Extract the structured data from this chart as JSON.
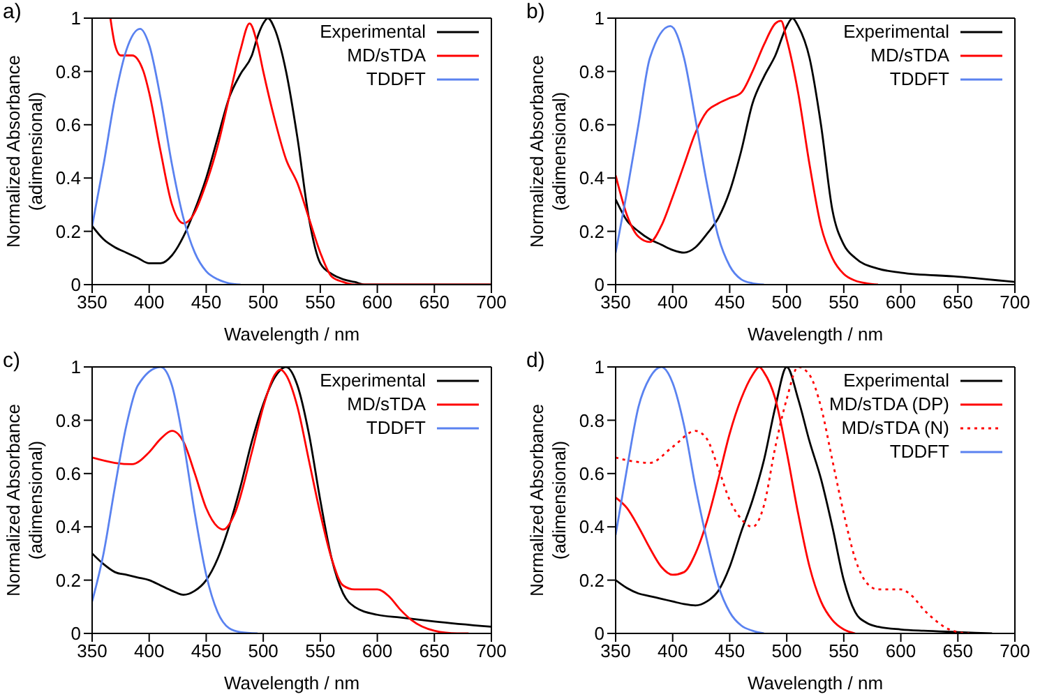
{
  "chart_data": [
    {
      "type": "line",
      "title": "a)",
      "xlabel": "Wavelength / nm",
      "ylabel": "Normalized Absorbance\n(adimensional)",
      "xlim": [
        350,
        700
      ],
      "xticks": [
        350,
        400,
        450,
        500,
        550,
        600,
        650,
        700
      ],
      "ylim": [
        0,
        1
      ],
      "yticks": [
        0,
        0.2,
        0.4,
        0.6,
        0.8,
        1
      ],
      "legend": "top right",
      "series": [
        {
          "name": "Experimental",
          "color": "#000000",
          "x": [
            350,
            360,
            370,
            380,
            390,
            400,
            410,
            420,
            430,
            440,
            450,
            460,
            470,
            480,
            490,
            495,
            500,
            504,
            510,
            520,
            530,
            540,
            550,
            560,
            570,
            580,
            590,
            600,
            650,
            700
          ],
          "values": [
            0.22,
            0.17,
            0.14,
            0.12,
            0.1,
            0.08,
            0.08,
            0.11,
            0.18,
            0.28,
            0.4,
            0.55,
            0.7,
            0.79,
            0.86,
            0.93,
            0.98,
            1.0,
            0.96,
            0.8,
            0.55,
            0.25,
            0.08,
            0.04,
            0.02,
            0.01,
            0,
            0,
            0,
            0
          ]
        },
        {
          "name": "MD/sTDA",
          "color": "#ff0000",
          "x": [
            366,
            370,
            375,
            385,
            395,
            400,
            410,
            420,
            430,
            435,
            450,
            460,
            470,
            480,
            488,
            495,
            500,
            510,
            520,
            530,
            540,
            550,
            560,
            570,
            580,
            700
          ],
          "values": [
            1.0,
            0.9,
            0.86,
            0.86,
            0.8,
            0.72,
            0.5,
            0.3,
            0.23,
            0.24,
            0.38,
            0.52,
            0.7,
            0.88,
            0.98,
            0.9,
            0.8,
            0.62,
            0.47,
            0.38,
            0.25,
            0.12,
            0.03,
            0.01,
            0,
            0
          ]
        },
        {
          "name": "TDDFT",
          "color": "#5a82f0",
          "x": [
            350,
            360,
            370,
            380,
            392,
            400,
            410,
            420,
            430,
            440,
            450,
            460,
            470,
            480
          ],
          "values": [
            0.22,
            0.45,
            0.7,
            0.88,
            0.96,
            0.9,
            0.7,
            0.45,
            0.25,
            0.12,
            0.05,
            0.02,
            0.005,
            0
          ]
        }
      ]
    },
    {
      "type": "line",
      "title": "b)",
      "xlabel": "Wavelength / nm",
      "ylabel": "Normalized Absorbance\n(adimensional)",
      "xlim": [
        350,
        700
      ],
      "xticks": [
        350,
        400,
        450,
        500,
        550,
        600,
        650,
        700
      ],
      "ylim": [
        0,
        1
      ],
      "yticks": [
        0,
        0.2,
        0.4,
        0.6,
        0.8,
        1
      ],
      "legend": "top right",
      "series": [
        {
          "name": "Experimental",
          "color": "#000000",
          "x": [
            350,
            360,
            370,
            380,
            390,
            400,
            410,
            420,
            430,
            440,
            450,
            460,
            470,
            480,
            490,
            500,
            505,
            510,
            520,
            530,
            540,
            550,
            560,
            580,
            600,
            650,
            700
          ],
          "values": [
            0.32,
            0.24,
            0.2,
            0.17,
            0.15,
            0.13,
            0.12,
            0.14,
            0.19,
            0.25,
            0.35,
            0.5,
            0.68,
            0.78,
            0.86,
            0.97,
            1.0,
            0.97,
            0.85,
            0.6,
            0.28,
            0.15,
            0.1,
            0.06,
            0.045,
            0.03,
            0.01
          ]
        },
        {
          "name": "MD/sTDA",
          "color": "#ff0000",
          "x": [
            350,
            360,
            370,
            380,
            390,
            400,
            410,
            420,
            430,
            440,
            450,
            460,
            470,
            480,
            490,
            495,
            500,
            510,
            520,
            530,
            540,
            550,
            560,
            570,
            580
          ],
          "values": [
            0.41,
            0.26,
            0.18,
            0.16,
            0.22,
            0.33,
            0.45,
            0.57,
            0.65,
            0.68,
            0.7,
            0.72,
            0.8,
            0.9,
            0.98,
            0.99,
            0.92,
            0.72,
            0.45,
            0.22,
            0.1,
            0.04,
            0.015,
            0.005,
            0
          ]
        },
        {
          "name": "TDDFT",
          "color": "#5a82f0",
          "x": [
            350,
            360,
            370,
            380,
            398,
            410,
            420,
            430,
            440,
            450,
            460,
            470,
            480
          ],
          "values": [
            0.12,
            0.35,
            0.6,
            0.85,
            0.97,
            0.85,
            0.62,
            0.38,
            0.18,
            0.07,
            0.02,
            0.005,
            0
          ]
        }
      ]
    },
    {
      "type": "line",
      "title": "c)",
      "xlabel": "Wavelength / nm",
      "ylabel": "Normalized Absorbance\n(adimensional)",
      "xlim": [
        350,
        700
      ],
      "xticks": [
        350,
        400,
        450,
        500,
        550,
        600,
        650,
        700
      ],
      "ylim": [
        0,
        1
      ],
      "yticks": [
        0,
        0.2,
        0.4,
        0.6,
        0.8,
        1
      ],
      "legend": "top right",
      "series": [
        {
          "name": "Experimental",
          "color": "#000000",
          "x": [
            350,
            360,
            370,
            380,
            390,
            400,
            410,
            420,
            430,
            440,
            450,
            460,
            470,
            480,
            490,
            500,
            510,
            520,
            530,
            540,
            550,
            560,
            570,
            580,
            600,
            620,
            650,
            700
          ],
          "values": [
            0.3,
            0.26,
            0.23,
            0.22,
            0.21,
            0.2,
            0.18,
            0.16,
            0.145,
            0.16,
            0.2,
            0.28,
            0.4,
            0.55,
            0.72,
            0.86,
            0.96,
            1.0,
            0.93,
            0.75,
            0.5,
            0.28,
            0.15,
            0.1,
            0.07,
            0.06,
            0.045,
            0.025
          ]
        },
        {
          "name": "MD/sTDA",
          "color": "#ff0000",
          "x": [
            350,
            370,
            385,
            400,
            410,
            420,
            430,
            440,
            450,
            460,
            465,
            475,
            490,
            500,
            510,
            515,
            520,
            530,
            540,
            550,
            560,
            570,
            580,
            600,
            610,
            620,
            630,
            650,
            670,
            680
          ],
          "values": [
            0.66,
            0.64,
            0.635,
            0.68,
            0.73,
            0.76,
            0.72,
            0.6,
            0.47,
            0.4,
            0.39,
            0.45,
            0.68,
            0.85,
            0.97,
            0.99,
            0.97,
            0.85,
            0.65,
            0.45,
            0.28,
            0.18,
            0.165,
            0.165,
            0.14,
            0.09,
            0.05,
            0.01,
            0,
            0
          ]
        },
        {
          "name": "TDDFT",
          "color": "#5a82f0",
          "x": [
            350,
            360,
            370,
            380,
            390,
            410,
            420,
            430,
            440,
            450,
            460,
            470,
            480,
            495
          ],
          "values": [
            0.12,
            0.3,
            0.55,
            0.78,
            0.93,
            1.0,
            0.93,
            0.72,
            0.45,
            0.22,
            0.08,
            0.02,
            0.005,
            0
          ]
        }
      ]
    },
    {
      "type": "line",
      "title": "d)",
      "xlabel": "Wavelength / nm",
      "ylabel": "Normalized Absorbance\n(adimensional)",
      "xlim": [
        350,
        700
      ],
      "xticks": [
        350,
        400,
        450,
        500,
        550,
        600,
        650,
        700
      ],
      "ylim": [
        0,
        1
      ],
      "yticks": [
        0,
        0.2,
        0.4,
        0.6,
        0.8,
        1
      ],
      "legend": "top right",
      "series": [
        {
          "name": "Experimental",
          "color": "#000000",
          "x": [
            350,
            360,
            370,
            380,
            390,
            400,
            410,
            420,
            430,
            440,
            450,
            460,
            470,
            480,
            490,
            500,
            510,
            520,
            530,
            540,
            550,
            560,
            570,
            580,
            600,
            620,
            650,
            680
          ],
          "values": [
            0.2,
            0.17,
            0.15,
            0.14,
            0.13,
            0.12,
            0.11,
            0.105,
            0.12,
            0.16,
            0.25,
            0.38,
            0.5,
            0.65,
            0.85,
            1.0,
            0.88,
            0.72,
            0.58,
            0.4,
            0.2,
            0.08,
            0.04,
            0.025,
            0.015,
            0.01,
            0.005,
            0
          ]
        },
        {
          "name": "MD/sTDA (DP)",
          "color": "#ff0000",
          "x": [
            350,
            360,
            370,
            380,
            390,
            400,
            410,
            420,
            430,
            440,
            450,
            460,
            470,
            476,
            480,
            490,
            500,
            510,
            520,
            530,
            540,
            550,
            560
          ],
          "values": [
            0.51,
            0.47,
            0.4,
            0.32,
            0.25,
            0.22,
            0.23,
            0.3,
            0.42,
            0.58,
            0.75,
            0.88,
            0.97,
            1.0,
            0.98,
            0.88,
            0.68,
            0.45,
            0.25,
            0.12,
            0.05,
            0.015,
            0
          ]
        },
        {
          "name": "MD/sTDA (N)",
          "color": "#ff0000",
          "line_style": "dotted",
          "x": [
            350,
            360,
            380,
            400,
            420,
            430,
            440,
            450,
            460,
            470,
            480,
            490,
            500,
            510,
            520,
            530,
            540,
            550,
            560,
            570,
            580,
            600,
            610,
            620,
            630,
            640,
            650,
            660
          ],
          "values": [
            0.66,
            0.65,
            0.64,
            0.7,
            0.76,
            0.73,
            0.62,
            0.5,
            0.43,
            0.4,
            0.48,
            0.7,
            0.88,
            1.0,
            0.97,
            0.85,
            0.65,
            0.45,
            0.28,
            0.19,
            0.165,
            0.165,
            0.14,
            0.09,
            0.05,
            0.02,
            0.005,
            0
          ]
        },
        {
          "name": "TDDFT",
          "color": "#5a82f0",
          "x": [
            350,
            360,
            370,
            380,
            390,
            400,
            410,
            420,
            430,
            440,
            450,
            460,
            470,
            480
          ],
          "values": [
            0.37,
            0.62,
            0.85,
            0.96,
            1.0,
            0.94,
            0.78,
            0.55,
            0.35,
            0.18,
            0.08,
            0.03,
            0.01,
            0
          ]
        }
      ]
    }
  ]
}
